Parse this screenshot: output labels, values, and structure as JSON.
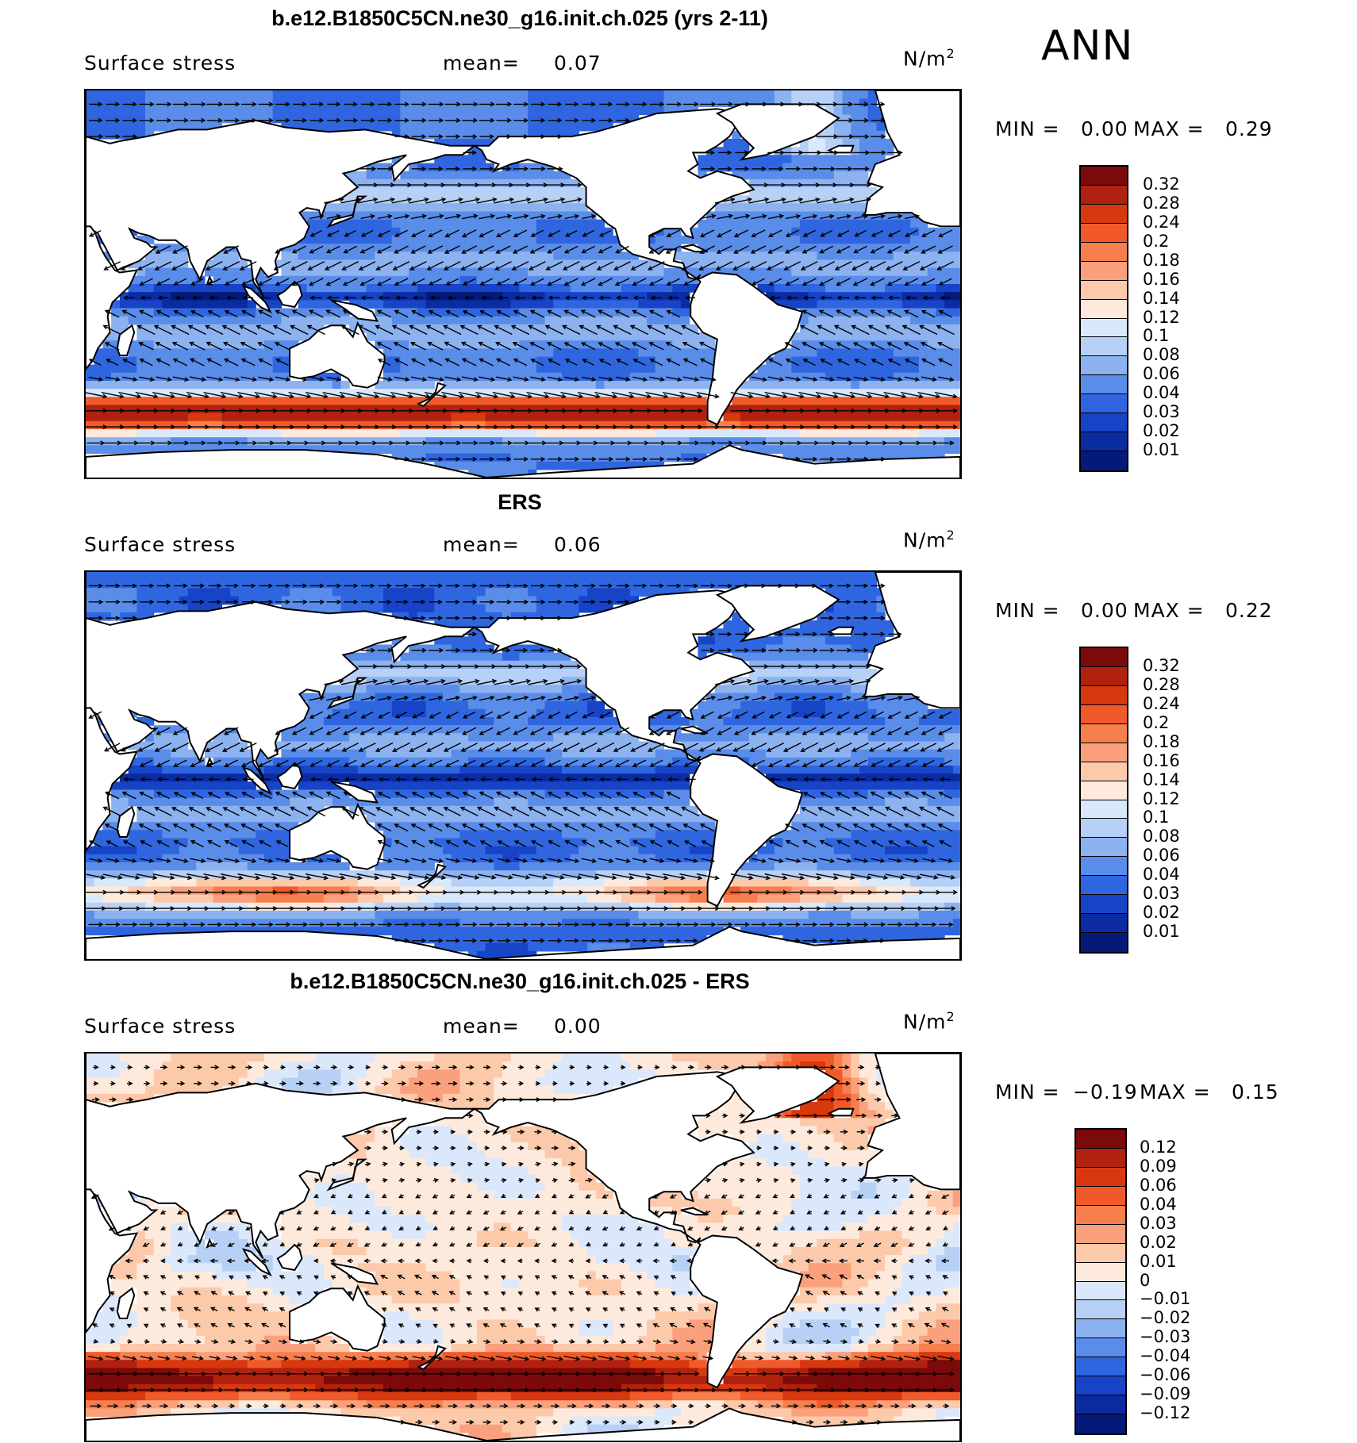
{
  "season": "ANN",
  "chart_data": [
    {
      "type": "heatmap",
      "title": "b.e12.B1850C5CN.ne30_g16.init.ch.025 (yrs 2-11)",
      "field_label": "Surface stress",
      "mean_label": "mean=",
      "mean_value": "0.07",
      "units_base": "N/m",
      "units_exp": "2",
      "min_label": "MIN =",
      "min_value": "0.00",
      "max_label": "MAX =",
      "max_value": "0.29",
      "colorbar_levels": [
        "0.32",
        "0.28",
        "0.24",
        "0.2",
        "0.18",
        "0.16",
        "0.14",
        "0.12",
        "0.1",
        "0.08",
        "0.06",
        "0.04",
        "0.03",
        "0.02",
        "0.01"
      ],
      "colorbar_colors": [
        "#7b0a0a",
        "#b1210f",
        "#d8380e",
        "#f05a2a",
        "#f77f4e",
        "#fba07c",
        "#fdc9ab",
        "#feeadc",
        "#d9e9fb",
        "#b7d0f6",
        "#8cb2f0",
        "#5a8de9",
        "#2f66e0",
        "#1744c7",
        "#0b2ba0",
        "#051a78"
      ],
      "data_source": "model"
    },
    {
      "type": "heatmap",
      "title": "ERS",
      "field_label": "Surface stress",
      "mean_label": "mean=",
      "mean_value": "0.06",
      "units_base": "N/m",
      "units_exp": "2",
      "min_label": "MIN =",
      "min_value": "0.00",
      "max_label": "MAX =",
      "max_value": "0.22",
      "colorbar_levels": [
        "0.32",
        "0.28",
        "0.24",
        "0.2",
        "0.18",
        "0.16",
        "0.14",
        "0.12",
        "0.1",
        "0.08",
        "0.06",
        "0.04",
        "0.03",
        "0.02",
        "0.01"
      ],
      "colorbar_colors": [
        "#7b0a0a",
        "#b1210f",
        "#d8380e",
        "#f05a2a",
        "#f77f4e",
        "#fba07c",
        "#fdc9ab",
        "#feeadc",
        "#d9e9fb",
        "#b7d0f6",
        "#8cb2f0",
        "#5a8de9",
        "#2f66e0",
        "#1744c7",
        "#0b2ba0",
        "#051a78"
      ],
      "data_source": "obs"
    },
    {
      "type": "heatmap",
      "title": "b.e12.B1850C5CN.ne30_g16.init.ch.025 - ERS",
      "field_label": "Surface stress",
      "mean_label": "mean=",
      "mean_value": "0.00",
      "units_base": "N/m",
      "units_exp": "2",
      "min_label": "MIN =",
      "min_value": "−0.19",
      "max_label": "MAX =",
      "max_value": "0.15",
      "colorbar_levels": [
        "0.12",
        "0.09",
        "0.06",
        "0.04",
        "0.03",
        "0.02",
        "0.01",
        "0",
        "−0.01",
        "−0.02",
        "−0.03",
        "−0.04",
        "−0.06",
        "−0.09",
        "−0.12"
      ],
      "colorbar_colors": [
        "#7b0a0a",
        "#b1210f",
        "#d8380e",
        "#f05a2a",
        "#f77f4e",
        "#fba07c",
        "#fdc9ab",
        "#feeadc",
        "#dbe8fb",
        "#b7d0f6",
        "#8cb2f0",
        "#5a8de9",
        "#2f66e0",
        "#1744c7",
        "#0b2ba0",
        "#051a78"
      ],
      "data_source": "diff"
    }
  ]
}
